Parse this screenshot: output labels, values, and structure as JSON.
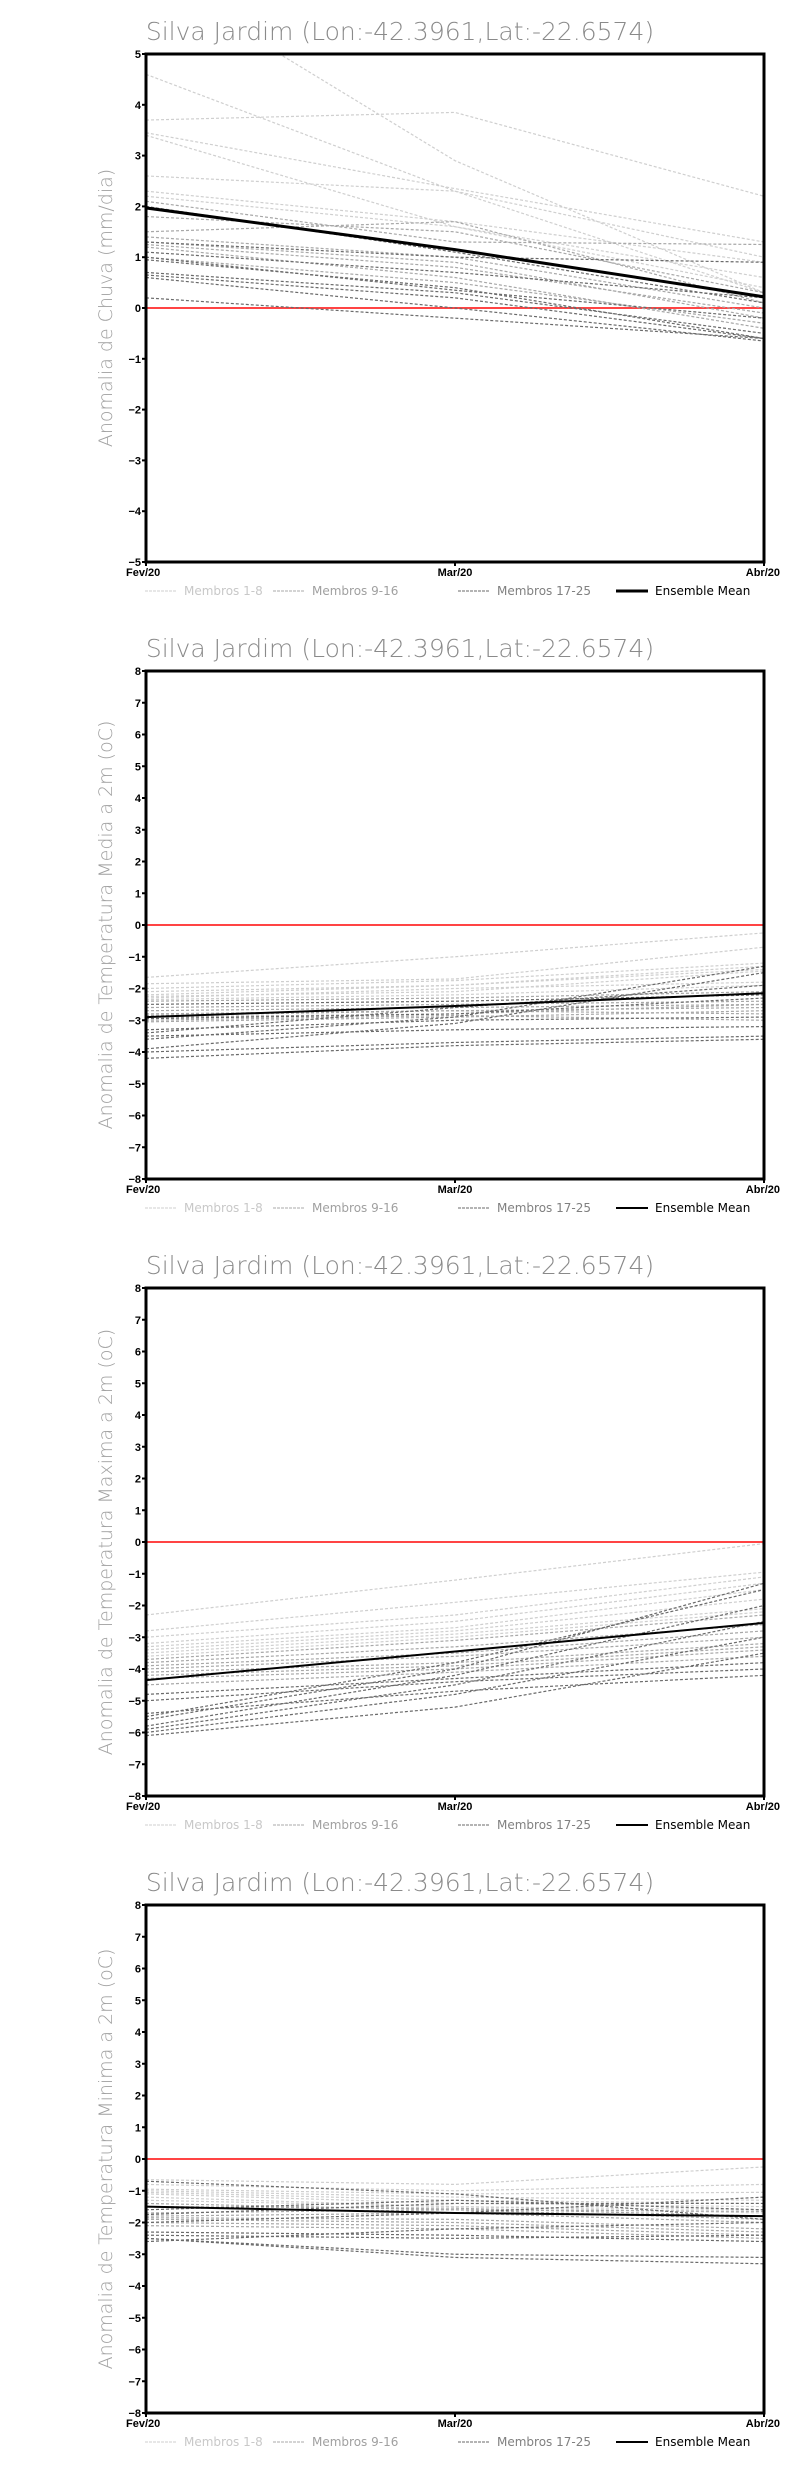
{
  "colors": {
    "members_1_8": "#cfcfcf",
    "members_9_16": "#a8a8a8",
    "members_17_25": "#6a6a6a",
    "mean": "#000000",
    "zero": "#ff4444"
  },
  "legend": [
    "Membros 1-8",
    "Membros 9-16",
    "Membros 17-25",
    "Ensemble Mean"
  ],
  "chart_data": [
    {
      "type": "line",
      "title": "Silva Jardim (Lon:-42.3961,Lat:-22.6574)",
      "ylabel": "Anomalia de Chuva (mm/dia)",
      "xlabel": "",
      "categories": [
        "Fev/20",
        "Mar/20",
        "Abr/20"
      ],
      "ylim": [
        -5,
        5
      ],
      "yticks": [
        -5,
        -4,
        -3,
        -2,
        -1,
        0,
        1,
        2,
        3,
        4,
        5
      ],
      "mean": [
        1.97,
        1.15,
        0.22
      ],
      "members": [
        [
          6.6,
          2.9,
          0.3
        ],
        [
          4.6,
          2.3,
          0.3
        ],
        [
          3.7,
          3.85,
          2.2
        ],
        [
          3.45,
          2.35,
          1.3
        ],
        [
          3.4,
          1.6,
          0.6
        ],
        [
          2.6,
          2.3,
          1.0
        ],
        [
          2.3,
          1.7,
          0.9
        ],
        [
          2.2,
          1.6,
          0.4
        ],
        [
          2.1,
          1.3,
          1.25
        ],
        [
          1.8,
          1.5,
          0.3
        ],
        [
          1.5,
          1.7,
          0.1
        ],
        [
          1.4,
          1.0,
          0.0
        ],
        [
          1.3,
          0.9,
          -0.2
        ],
        [
          1.25,
          0.8,
          -0.1
        ],
        [
          1.2,
          0.6,
          -0.4
        ],
        [
          1.0,
          0.5,
          -0.3
        ],
        [
          0.95,
          0.4,
          -0.6
        ],
        [
          0.7,
          0.3,
          -0.5
        ],
        [
          0.65,
          0.2,
          -0.6
        ],
        [
          0.6,
          0.0,
          -0.65
        ],
        [
          0.2,
          -0.2,
          -0.6
        ],
        [
          1.1,
          0.7,
          0.2
        ],
        [
          1.0,
          0.35,
          -0.2
        ],
        [
          1.3,
          1.0,
          0.9
        ],
        [
          2.0,
          1.1,
          0.1
        ]
      ]
    },
    {
      "type": "line",
      "title": "Silva Jardim (Lon:-42.3961,Lat:-22.6574)",
      "ylabel": "Anomalia de Temperatura Media a 2m (oC)",
      "xlabel": "",
      "categories": [
        "Fev/20",
        "Mar/20",
        "Abr/20"
      ],
      "ylim": [
        -8,
        8
      ],
      "yticks": [
        -8,
        -7,
        -6,
        -5,
        -4,
        -3,
        -2,
        -1,
        0,
        1,
        2,
        3,
        4,
        5,
        6,
        7,
        8
      ],
      "mean": [
        -2.9,
        -2.55,
        -2.15
      ],
      "members": [
        [
          -1.65,
          -1.0,
          -0.25
        ],
        [
          -1.85,
          -1.7,
          -0.7
        ],
        [
          -2.0,
          -1.75,
          -1.2
        ],
        [
          -2.1,
          -1.9,
          -1.3
        ],
        [
          -2.2,
          -1.9,
          -1.4
        ],
        [
          -2.25,
          -2.1,
          -1.45
        ],
        [
          -2.3,
          -2.0,
          -1.8
        ],
        [
          -2.35,
          -2.2,
          -1.9
        ],
        [
          -2.4,
          -2.3,
          -2.1
        ],
        [
          -2.6,
          -2.5,
          -2.4
        ],
        [
          -2.7,
          -2.6,
          -2.5
        ],
        [
          -2.8,
          -2.7,
          -2.6
        ],
        [
          -2.85,
          -2.7,
          -2.8
        ],
        [
          -2.9,
          -2.8,
          -2.5
        ],
        [
          -3.0,
          -2.85,
          -3.0
        ],
        [
          -3.05,
          -2.9,
          -2.7
        ],
        [
          -3.3,
          -3.0,
          -2.9
        ],
        [
          -3.5,
          -3.3,
          -3.2
        ],
        [
          -3.6,
          -2.9,
          -1.3
        ],
        [
          -3.9,
          -3.1,
          -1.5
        ],
        [
          -4.0,
          -3.7,
          -3.5
        ],
        [
          -4.2,
          -3.8,
          -3.6
        ],
        [
          -2.5,
          -2.4,
          -2.2
        ],
        [
          -3.4,
          -2.6,
          -1.9
        ],
        [
          -2.95,
          -2.8,
          -2.3
        ]
      ]
    },
    {
      "type": "line",
      "title": "Silva Jardim (Lon:-42.3961,Lat:-22.6574)",
      "ylabel": "Anomalia de Temperatura Maxima a 2m (oC)",
      "xlabel": "",
      "categories": [
        "Fev/20",
        "Mar/20",
        "Abr/20"
      ],
      "ylim": [
        -8,
        8
      ],
      "yticks": [
        -8,
        -7,
        -6,
        -5,
        -4,
        -3,
        -2,
        -1,
        0,
        1,
        2,
        3,
        4,
        5,
        6,
        7,
        8
      ],
      "mean": [
        -4.35,
        -3.45,
        -2.55
      ],
      "members": [
        [
          -2.3,
          -1.2,
          -0.05
        ],
        [
          -2.8,
          -1.9,
          -0.95
        ],
        [
          -3.0,
          -2.3,
          -1.1
        ],
        [
          -3.2,
          -2.5,
          -1.3
        ],
        [
          -3.3,
          -2.7,
          -1.5
        ],
        [
          -3.4,
          -2.8,
          -1.8
        ],
        [
          -3.5,
          -2.9,
          -2.1
        ],
        [
          -3.6,
          -3.0,
          -2.2
        ],
        [
          -3.7,
          -3.1,
          -2.3
        ],
        [
          -3.8,
          -3.3,
          -2.6
        ],
        [
          -3.9,
          -3.5,
          -2.8
        ],
        [
          -4.0,
          -3.6,
          -3.0
        ],
        [
          -4.1,
          -3.8,
          -3.2
        ],
        [
          -4.2,
          -3.9,
          -3.3
        ],
        [
          -4.3,
          -4.0,
          -3.4
        ],
        [
          -4.5,
          -4.1,
          -3.6
        ],
        [
          -4.8,
          -4.3,
          -3.8
        ],
        [
          -5.0,
          -4.4,
          -4.0
        ],
        [
          -5.4,
          -4.7,
          -4.2
        ],
        [
          -5.5,
          -3.8,
          -1.5
        ],
        [
          -5.6,
          -4.0,
          -1.3
        ],
        [
          -5.8,
          -4.2,
          -2.0
        ],
        [
          -5.9,
          -4.5,
          -2.5
        ],
        [
          -6.0,
          -4.8,
          -3.0
        ],
        [
          -6.1,
          -5.2,
          -3.5
        ]
      ]
    },
    {
      "type": "line",
      "title": "Silva Jardim (Lon:-42.3961,Lat:-22.6574)",
      "ylabel": "Anomalia de Temperatura Minima a 2m (oC)",
      "xlabel": "",
      "categories": [
        "Fev/20",
        "Mar/20",
        "Abr/20"
      ],
      "ylim": [
        -8,
        8
      ],
      "yticks": [
        -8,
        -7,
        -6,
        -5,
        -4,
        -3,
        -2,
        -1,
        0,
        1,
        2,
        3,
        4,
        5,
        6,
        7,
        8
      ],
      "mean": [
        -1.5,
        -1.7,
        -1.8
      ],
      "members": [
        [
          -0.65,
          -0.8,
          -0.25
        ],
        [
          -0.8,
          -1.0,
          -0.8
        ],
        [
          -0.95,
          -1.1,
          -1.05
        ],
        [
          -1.0,
          -1.2,
          -1.3
        ],
        [
          -1.05,
          -1.3,
          -1.4
        ],
        [
          -1.1,
          -1.4,
          -1.5
        ],
        [
          -1.2,
          -1.5,
          -1.6
        ],
        [
          -1.3,
          -1.5,
          -1.7
        ],
        [
          -1.4,
          -1.6,
          -1.65
        ],
        [
          -1.5,
          -1.55,
          -1.8
        ],
        [
          -1.7,
          -1.6,
          -1.9
        ],
        [
          -1.8,
          -1.7,
          -2.0
        ],
        [
          -1.85,
          -1.9,
          -2.2
        ],
        [
          -1.9,
          -2.0,
          -2.3
        ],
        [
          -2.0,
          -2.1,
          -2.4
        ],
        [
          -2.1,
          -2.2,
          -2.5
        ],
        [
          -2.3,
          -2.4,
          -2.6
        ],
        [
          -2.4,
          -2.5,
          -2.4
        ],
        [
          -2.5,
          -3.0,
          -3.1
        ],
        [
          -2.5,
          -3.1,
          -3.3
        ],
        [
          -2.6,
          -2.2,
          -2.0
        ],
        [
          -1.6,
          -1.3,
          -1.6
        ],
        [
          -2.0,
          -1.7,
          -1.2
        ],
        [
          -1.75,
          -1.4,
          -1.4
        ],
        [
          -0.7,
          -1.1,
          -1.9
        ]
      ]
    }
  ]
}
